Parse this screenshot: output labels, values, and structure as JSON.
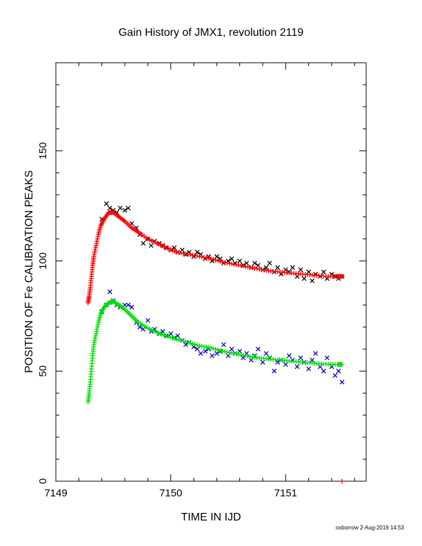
{
  "chart_data": {
    "type": "scatter",
    "title": "Gain History of JMX1, revolution 2119",
    "xlabel": "TIME IN IJD",
    "ylabel": "POSITION OF Fe CALIBRATION PEAKS",
    "xlim": [
      7149,
      7151.7
    ],
    "ylim": [
      0,
      190
    ],
    "x_ticks": [
      7149,
      7150,
      7151
    ],
    "x_tick_labels": [
      "7149",
      "7150",
      "7151"
    ],
    "y_ticks": [
      0,
      50,
      100,
      150
    ],
    "y_tick_labels": [
      "0",
      "50",
      "100",
      "150"
    ],
    "grid": false,
    "footer": "oxborrow  2-Aug-2019 14:53",
    "series": [
      {
        "role": "upper-peak-measured",
        "marker": "x",
        "color": "#000000",
        "points": [
          [
            7149.4,
            119
          ],
          [
            7149.44,
            126
          ],
          [
            7149.47,
            124
          ],
          [
            7149.5,
            123
          ],
          [
            7149.53,
            122
          ],
          [
            7149.56,
            124
          ],
          [
            7149.6,
            123
          ],
          [
            7149.63,
            124
          ],
          [
            7149.66,
            117
          ],
          [
            7149.7,
            115
          ],
          [
            7149.73,
            112
          ],
          [
            7149.76,
            108
          ],
          [
            7149.8,
            110
          ],
          [
            7149.83,
            107
          ],
          [
            7149.86,
            109
          ],
          [
            7149.9,
            108
          ],
          [
            7149.93,
            107
          ],
          [
            7149.96,
            106
          ],
          [
            7150.0,
            105
          ],
          [
            7150.03,
            106
          ],
          [
            7150.06,
            104
          ],
          [
            7150.1,
            105
          ],
          [
            7150.13,
            103
          ],
          [
            7150.16,
            104
          ],
          [
            7150.2,
            102
          ],
          [
            7150.23,
            104
          ],
          [
            7150.26,
            103
          ],
          [
            7150.3,
            101
          ],
          [
            7150.33,
            102
          ],
          [
            7150.36,
            100
          ],
          [
            7150.4,
            102
          ],
          [
            7150.43,
            101
          ],
          [
            7150.46,
            99
          ],
          [
            7150.5,
            100
          ],
          [
            7150.53,
            101
          ],
          [
            7150.56,
            99
          ],
          [
            7150.6,
            100
          ],
          [
            7150.63,
            98
          ],
          [
            7150.66,
            99
          ],
          [
            7150.7,
            97
          ],
          [
            7150.73,
            99
          ],
          [
            7150.76,
            98
          ],
          [
            7150.8,
            96
          ],
          [
            7150.83,
            97
          ],
          [
            7150.86,
            99
          ],
          [
            7150.9,
            95
          ],
          [
            7150.93,
            97
          ],
          [
            7150.96,
            94
          ],
          [
            7151.0,
            96
          ],
          [
            7151.03,
            95
          ],
          [
            7151.06,
            97
          ],
          [
            7151.1,
            93
          ],
          [
            7151.13,
            96
          ],
          [
            7151.16,
            92
          ],
          [
            7151.2,
            95
          ],
          [
            7151.23,
            91
          ],
          [
            7151.26,
            94
          ],
          [
            7151.3,
            93
          ],
          [
            7151.33,
            95
          ],
          [
            7151.36,
            92
          ],
          [
            7151.4,
            94
          ],
          [
            7151.43,
            93
          ],
          [
            7151.46,
            92
          ],
          [
            7151.49,
            93
          ]
        ]
      },
      {
        "role": "upper-peak-fit",
        "marker": "+",
        "color": "#ff0000",
        "points": [
          [
            7149.28,
            81
          ],
          [
            7149.29,
            84
          ],
          [
            7149.3,
            88
          ],
          [
            7149.31,
            93
          ],
          [
            7149.32,
            98
          ],
          [
            7149.33,
            102
          ],
          [
            7149.35,
            107
          ],
          [
            7149.37,
            112
          ],
          [
            7149.39,
            116
          ],
          [
            7149.42,
            119
          ],
          [
            7149.46,
            122
          ],
          [
            7149.5,
            122
          ],
          [
            7149.55,
            120
          ],
          [
            7149.6,
            118
          ],
          [
            7149.66,
            115
          ],
          [
            7149.72,
            113
          ],
          [
            7149.8,
            110
          ],
          [
            7149.88,
            108
          ],
          [
            7149.96,
            106
          ],
          [
            7150.05,
            104
          ],
          [
            7150.15,
            103
          ],
          [
            7150.25,
            102
          ],
          [
            7150.35,
            101
          ],
          [
            7150.45,
            99.5
          ],
          [
            7150.55,
            98.5
          ],
          [
            7150.65,
            97.5
          ],
          [
            7150.75,
            96.5
          ],
          [
            7150.85,
            95.5
          ],
          [
            7150.95,
            95
          ],
          [
            7151.05,
            94.5
          ],
          [
            7151.15,
            94
          ],
          [
            7151.25,
            93.5
          ],
          [
            7151.35,
            93
          ],
          [
            7151.45,
            93
          ],
          [
            7151.49,
            93
          ]
        ]
      },
      {
        "role": "lower-peak-measured",
        "marker": "x",
        "color": "#0000cc",
        "points": [
          [
            7149.4,
            77
          ],
          [
            7149.44,
            80
          ],
          [
            7149.47,
            86
          ],
          [
            7149.5,
            82
          ],
          [
            7149.53,
            80
          ],
          [
            7149.56,
            79
          ],
          [
            7149.6,
            80
          ],
          [
            7149.63,
            80
          ],
          [
            7149.66,
            79
          ],
          [
            7149.7,
            72
          ],
          [
            7149.73,
            70
          ],
          [
            7149.76,
            69
          ],
          [
            7149.8,
            73
          ],
          [
            7149.83,
            68
          ],
          [
            7149.86,
            69
          ],
          [
            7149.9,
            67
          ],
          [
            7149.93,
            68
          ],
          [
            7149.96,
            66
          ],
          [
            7150.0,
            67
          ],
          [
            7150.03,
            65
          ],
          [
            7150.06,
            66
          ],
          [
            7150.1,
            64
          ],
          [
            7150.13,
            62
          ],
          [
            7150.16,
            63
          ],
          [
            7150.2,
            61
          ],
          [
            7150.23,
            60
          ],
          [
            7150.26,
            58
          ],
          [
            7150.3,
            59
          ],
          [
            7150.33,
            60
          ],
          [
            7150.36,
            57
          ],
          [
            7150.4,
            58
          ],
          [
            7150.43,
            59
          ],
          [
            7150.46,
            62
          ],
          [
            7150.5,
            57
          ],
          [
            7150.53,
            60
          ],
          [
            7150.56,
            58
          ],
          [
            7150.6,
            59
          ],
          [
            7150.63,
            56
          ],
          [
            7150.66,
            58
          ],
          [
            7150.7,
            55
          ],
          [
            7150.73,
            57
          ],
          [
            7150.76,
            60
          ],
          [
            7150.8,
            54
          ],
          [
            7150.83,
            58
          ],
          [
            7150.86,
            56
          ],
          [
            7150.9,
            50
          ],
          [
            7150.93,
            54
          ],
          [
            7150.96,
            55
          ],
          [
            7151.0,
            53
          ],
          [
            7151.03,
            57
          ],
          [
            7151.06,
            55
          ],
          [
            7151.1,
            52
          ],
          [
            7151.13,
            56
          ],
          [
            7151.16,
            54
          ],
          [
            7151.2,
            51
          ],
          [
            7151.23,
            55
          ],
          [
            7151.26,
            58
          ],
          [
            7151.3,
            52
          ],
          [
            7151.33,
            50
          ],
          [
            7151.36,
            56
          ],
          [
            7151.4,
            52
          ],
          [
            7151.43,
            48
          ],
          [
            7151.46,
            50
          ],
          [
            7151.49,
            45
          ]
        ]
      },
      {
        "role": "lower-peak-fit",
        "marker": "+",
        "color": "#00dd00",
        "points": [
          [
            7149.28,
            36
          ],
          [
            7149.29,
            40
          ],
          [
            7149.3,
            45
          ],
          [
            7149.31,
            51
          ],
          [
            7149.32,
            57
          ],
          [
            7149.33,
            62
          ],
          [
            7149.35,
            67
          ],
          [
            7149.37,
            72
          ],
          [
            7149.39,
            76
          ],
          [
            7149.42,
            79
          ],
          [
            7149.46,
            81
          ],
          [
            7149.5,
            81.5
          ],
          [
            7149.55,
            80
          ],
          [
            7149.6,
            78
          ],
          [
            7149.66,
            75
          ],
          [
            7149.72,
            72
          ],
          [
            7149.8,
            69.5
          ],
          [
            7149.88,
            67.5
          ],
          [
            7149.96,
            66
          ],
          [
            7150.05,
            64.5
          ],
          [
            7150.15,
            63
          ],
          [
            7150.25,
            61.5
          ],
          [
            7150.35,
            60.5
          ],
          [
            7150.45,
            59
          ],
          [
            7150.55,
            58
          ],
          [
            7150.65,
            57
          ],
          [
            7150.75,
            56
          ],
          [
            7150.85,
            55.5
          ],
          [
            7150.95,
            55
          ],
          [
            7151.05,
            54.5
          ],
          [
            7151.15,
            54
          ],
          [
            7151.25,
            53.5
          ],
          [
            7151.35,
            53.2
          ],
          [
            7151.45,
            53
          ],
          [
            7151.49,
            53
          ]
        ]
      }
    ],
    "annotations": [
      {
        "type": "tick-mark",
        "x": 7151.49,
        "y": 0,
        "marker": "+",
        "color": "#ff0000"
      }
    ]
  }
}
